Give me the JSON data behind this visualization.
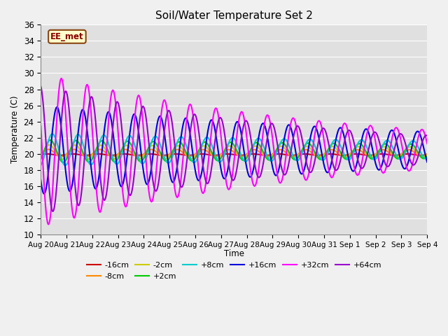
{
  "title": "Soil/Water Temperature Set 2",
  "ylabel": "Temperature (C)",
  "xlabel": "Time",
  "ylim": [
    10,
    36
  ],
  "background_color": "#e0e0e0",
  "fig_bg": "#f0f0f0",
  "watermark_text": "EE_met",
  "watermark_fg": "#8B0000",
  "watermark_bg": "#ffffcc",
  "watermark_border": "#8B4513",
  "x_tick_labels": [
    "Aug 20",
    "Aug 21",
    "Aug 22",
    "Aug 23",
    "Aug 24",
    "Aug 25",
    "Aug 26",
    "Aug 27",
    "Aug 28",
    "Aug 29",
    "Aug 30",
    "Aug 31",
    "Sep 1",
    "Sep 2",
    "Sep 3",
    "Sep 4"
  ],
  "total_days": 15,
  "grid_color": "white",
  "series": [
    {
      "label": "-16cm",
      "color": "#cc0000",
      "lw": 1.5,
      "amplitude": 0.08,
      "mean": 19.9,
      "phase": 0.0,
      "decay": 0.0
    },
    {
      "label": "-8cm",
      "color": "#ff8800",
      "lw": 1.5,
      "amplitude": 0.45,
      "mean": 20.1,
      "phase": 0.04,
      "decay": 0.01
    },
    {
      "label": "-2cm",
      "color": "#cccc00",
      "lw": 1.5,
      "amplitude": 0.9,
      "mean": 20.2,
      "phase": 0.08,
      "decay": 0.02
    },
    {
      "+2cm": "+2cm",
      "label": "+2cm",
      "color": "#00cc00",
      "lw": 1.5,
      "amplitude": 1.4,
      "mean": 20.3,
      "phase": 0.12,
      "decay": 0.03
    },
    {
      "label": "+8cm",
      "color": "#00cccc",
      "lw": 1.5,
      "amplitude": 2.0,
      "mean": 20.5,
      "phase": 0.2,
      "decay": 0.04
    },
    {
      "label": "+16cm",
      "color": "#0000dd",
      "lw": 1.5,
      "amplitude": 5.5,
      "mean": 20.5,
      "phase": 0.38,
      "decay": 0.06
    },
    {
      "label": "+32cm",
      "color": "#ff00ff",
      "lw": 1.5,
      "amplitude": 9.5,
      "mean": 20.5,
      "phase": 0.55,
      "decay": 0.09
    },
    {
      "label": "+64cm",
      "color": "#9900cc",
      "lw": 1.5,
      "amplitude": 8.0,
      "mean": 20.5,
      "phase": 0.72,
      "decay": 0.1
    }
  ]
}
